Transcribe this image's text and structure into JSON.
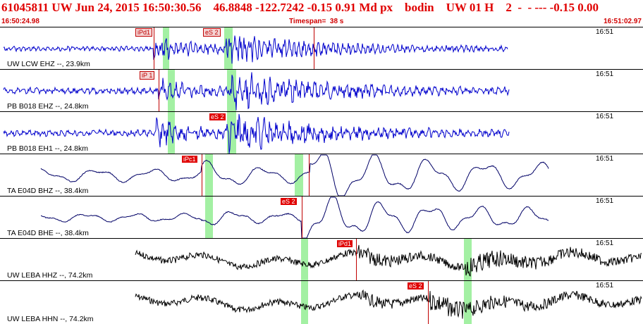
{
  "header": {
    "title": "61045811 UW Jun 24, 2015 16:50:30.56    46.8848 -122.7242 -0.15 0.91 Md px    bodin    UW 01 H    2  -  - --- -0.15 0.00",
    "start_time": "16:50:24.98",
    "timespan": "Timespan=  38 s",
    "end_time": "16:51:02.97"
  },
  "panels": [
    {
      "label": "UW LCW EHZ --, 23.9km",
      "time": "16:51",
      "color": "#0000cc",
      "picks": [
        {
          "text": "iPd1",
          "style": "pale"
        },
        {
          "text": "eS 2",
          "style": "pale"
        }
      ]
    },
    {
      "label": "PB B018 EHZ --, 24.8km",
      "time": "16:51",
      "color": "#0000cc",
      "picks": [
        {
          "text": "iP 1",
          "style": "pale"
        }
      ]
    },
    {
      "label": "PB B018 EH1 --, 24.8km",
      "time": "16:51",
      "color": "#0000cc",
      "picks": [
        {
          "text": "eS 2",
          "style": "red"
        }
      ]
    },
    {
      "label": "TA E04D BHZ --, 38.4km",
      "time": "16:51",
      "color": "#000066",
      "picks": [
        {
          "text": "iPc1",
          "style": "red"
        }
      ]
    },
    {
      "label": "TA E04D BHE --, 38.4km",
      "time": "16:51",
      "color": "#000066",
      "picks": [
        {
          "text": "eS 2",
          "style": "red"
        }
      ]
    },
    {
      "label": "UW LEBA HHZ --, 74.2km",
      "time": "16:51",
      "color": "#000000",
      "picks": [
        {
          "text": "iPd1",
          "style": "red"
        }
      ]
    },
    {
      "label": "UW LEBA HHN --, 74.2km",
      "time": "16:51",
      "color": "#000000",
      "picks": [
        {
          "text": "eS 2",
          "style": "red"
        }
      ]
    }
  ]
}
